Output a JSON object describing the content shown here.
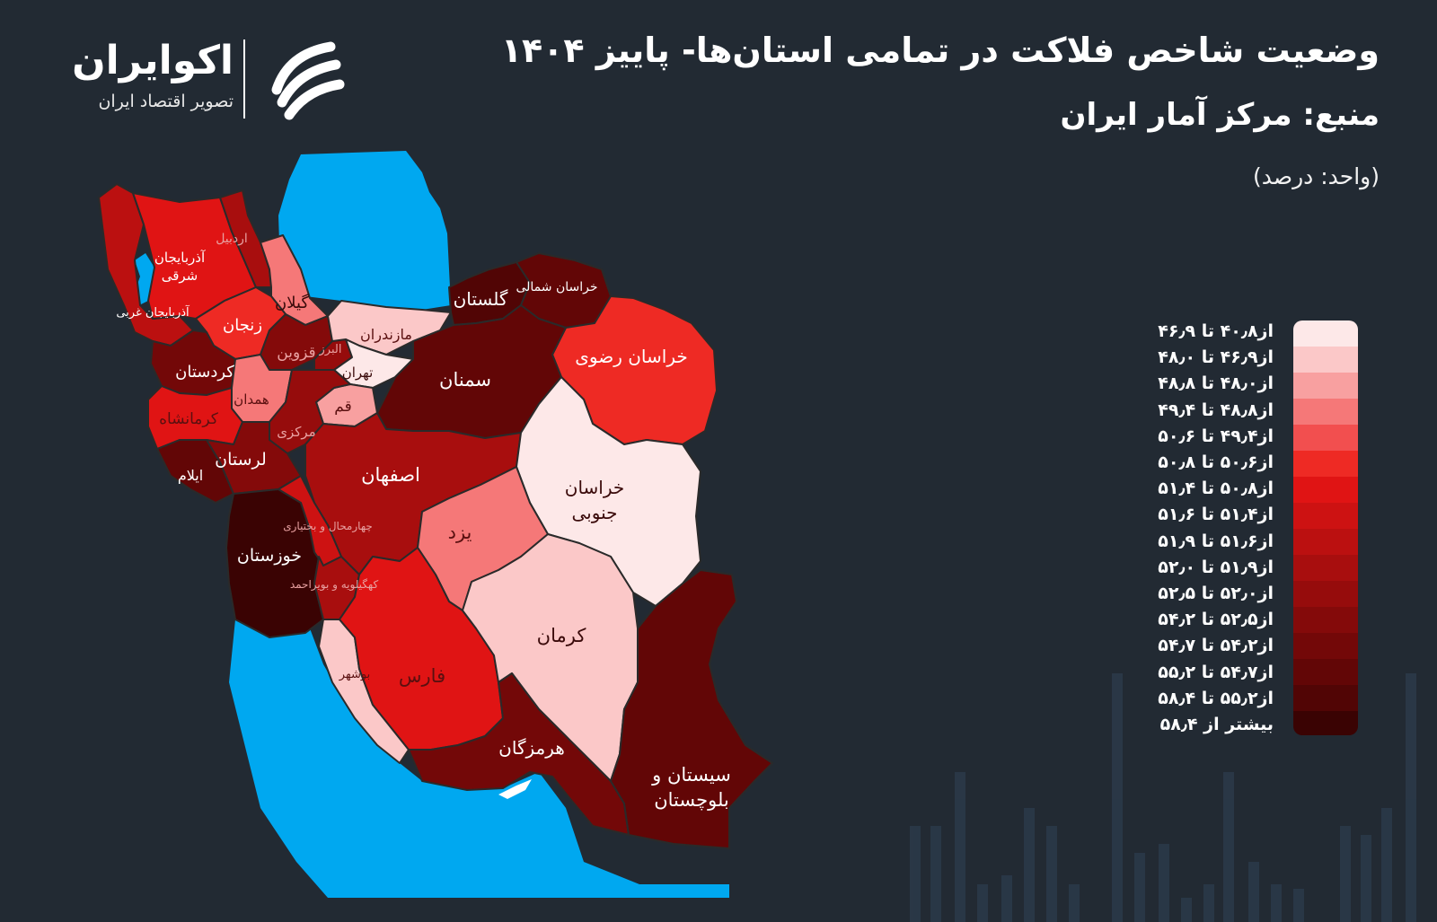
{
  "header": {
    "title": "وضعیت شاخص فلاکت در تمامی استان‌ها- پاییز ۱۴۰۴",
    "source": "منبع: مرکز آمار ایران",
    "unit": "(واحد: درصد)"
  },
  "logo": {
    "name": "اکوایران",
    "tagline": "تصویر اقتصاد ایران",
    "icon": "ecoiran-mark-icon"
  },
  "colors": {
    "background": "#222a33",
    "water": "#00a8f0",
    "border": "#2a2a2a"
  },
  "legend": [
    {
      "label": "از۴۰٫۸ تا ۴۶٫۹",
      "color": "#fde8e8"
    },
    {
      "label": "از۴۶٫۹ تا ۴۸٫۰",
      "color": "#fbc8c8"
    },
    {
      "label": "از۴۸٫۰ تا ۴۸٫۸",
      "color": "#f8a0a0"
    },
    {
      "label": "از۴۸٫۸ تا ۴۹٫۴",
      "color": "#f57878"
    },
    {
      "label": "از۴۹٫۴ تا ۵۰٫۶",
      "color": "#f24f4f"
    },
    {
      "label": "از۵۰٫۶ تا ۵۰٫۸",
      "color": "#ee2a24"
    },
    {
      "label": "از۵۰٫۸ تا ۵۱٫۴",
      "color": "#e01414"
    },
    {
      "label": "از۵۱٫۴ تا ۵۱٫۶",
      "color": "#cd1212"
    },
    {
      "label": "از۵۱٫۶ تا ۵۱٫۹",
      "color": "#bb1010"
    },
    {
      "label": "از۵۱٫۹ تا ۵۲٫۰",
      "color": "#a80e0e"
    },
    {
      "label": "از۵۲٫۰ تا ۵۲٫۵",
      "color": "#960c0c"
    },
    {
      "label": "از۵۲٫۵ تا ۵۴٫۲",
      "color": "#840a0a"
    },
    {
      "label": "از۵۴٫۲ تا ۵۴٫۷",
      "color": "#730808"
    },
    {
      "label": "از۵۴٫۷ تا ۵۵٫۲",
      "color": "#620606"
    },
    {
      "label": "از۵۵٫۲ تا ۵۸٫۴",
      "color": "#510505"
    },
    {
      "label": "بیشتر از ۵۸٫۴",
      "color": "#3a0303"
    }
  ],
  "provinces": [
    {
      "name": "آذربایجان شرقی",
      "color": "#e01414"
    },
    {
      "name": "آذربایجان غربی",
      "color": "#bb1010"
    },
    {
      "name": "اردبیل",
      "color": "#a80e0e"
    },
    {
      "name": "گیلان",
      "color": "#f57878"
    },
    {
      "name": "زنجان",
      "color": "#ee2a24"
    },
    {
      "name": "قزوین",
      "color": "#840a0a"
    },
    {
      "name": "البرز",
      "color": "#960c0c"
    },
    {
      "name": "مازندران",
      "color": "#fbc8c8"
    },
    {
      "name": "تهران",
      "color": "#fde8e8"
    },
    {
      "name": "قم",
      "color": "#f8a0a0"
    },
    {
      "name": "کردستان",
      "color": "#730808"
    },
    {
      "name": "همدان",
      "color": "#f57878"
    },
    {
      "name": "کرمانشاه",
      "color": "#e01414"
    },
    {
      "name": "مرکزی",
      "color": "#960c0c"
    },
    {
      "name": "لرستان",
      "color": "#840a0a"
    },
    {
      "name": "ایلام",
      "color": "#620606"
    },
    {
      "name": "گلستان",
      "color": "#510505"
    },
    {
      "name": "خراسان شمالی",
      "color": "#620606"
    },
    {
      "name": "خراسان رضوی",
      "color": "#ee2a24"
    },
    {
      "name": "سمنان",
      "color": "#620606"
    },
    {
      "name": "اصفهان",
      "color": "#a80e0e"
    },
    {
      "name": "خراسان جنوبی",
      "color": "#fde8e8"
    },
    {
      "name": "یزد",
      "color": "#f57878"
    },
    {
      "name": "خوزستان",
      "color": "#3a0303"
    },
    {
      "name": "چهارمحال و بختیاری",
      "color": "#cd1212"
    },
    {
      "name": "کهگیلویه و بویراحمد",
      "color": "#a80e0e"
    },
    {
      "name": "کرمان",
      "color": "#fbc8c8"
    },
    {
      "name": "فارس",
      "color": "#e01414"
    },
    {
      "name": "بوشهر",
      "color": "#fbc8c8"
    },
    {
      "name": "هرمزگان",
      "color": "#730808"
    },
    {
      "name": "سیستان و بلوچستان",
      "color": "#620606"
    }
  ],
  "map_labels": {
    "azsh": "آذربایجان شرقی",
    "azgh": "آذربایجان غربی",
    "ardabil": "اردبیل",
    "gilan": "گیلان",
    "zanjan": "زنجان",
    "qazvin": "قزوین",
    "alborz": "البرز",
    "mazandaran": "مازندران",
    "tehran": "تهران",
    "qom": "قم",
    "kurdistan": "کردستان",
    "hamedan": "همدان",
    "kermanshah": "کرمانشاه",
    "markazi": "مرکزی",
    "lorestan": "لرستان",
    "ilam": "ایلام",
    "golestan": "گلستان",
    "khshomali": "خراسان شمالی",
    "khrazavi": "خراسان رضوی",
    "semnan": "سمنان",
    "esfahan": "اصفهان",
    "khjonubi": "خراسان جنوبی",
    "yazd": "یزد",
    "khuzestan": "خوزستان",
    "chb": "چهارمحال و بختیاری",
    "kb": "کهگیلویه و بویراحمد",
    "kerman": "کرمان",
    "fars": "فارس",
    "bushehr": "بوشهر",
    "hormozgan": "هرمزگان",
    "sb": "سیستان و بلوچستان"
  }
}
